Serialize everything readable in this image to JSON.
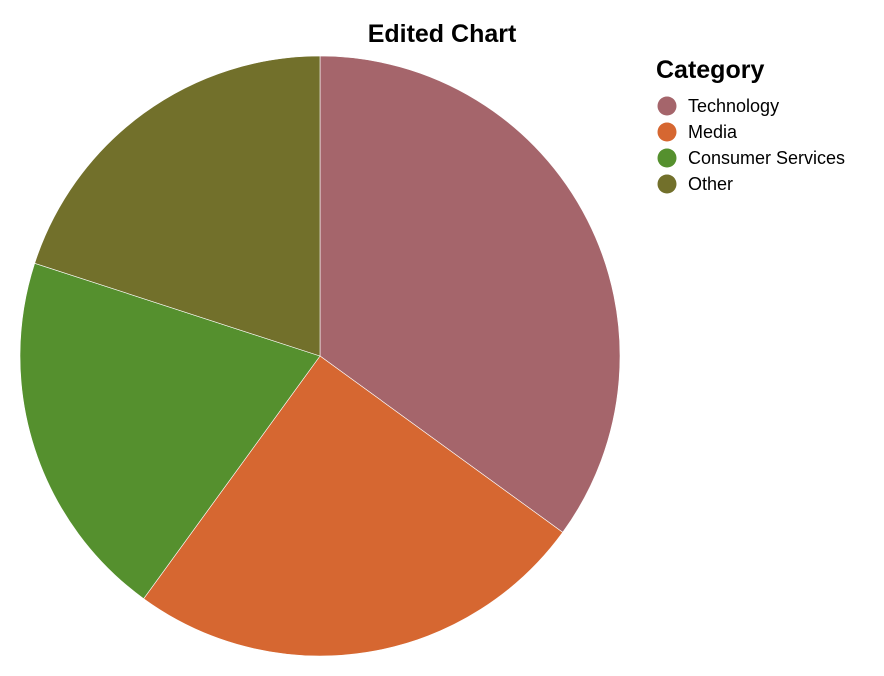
{
  "chart_data": {
    "type": "pie",
    "title": "Edited Chart",
    "legend": {
      "title": "Category",
      "placement": "top-right"
    },
    "categories": [
      "Technology",
      "Media",
      "Consumer Services",
      "Other"
    ],
    "values": [
      35,
      25,
      20,
      20
    ],
    "colors": [
      "#a5656b",
      "#d66731",
      "#55902e",
      "#72702b"
    ],
    "start_angle_deg": 0,
    "direction": "clockwise"
  }
}
